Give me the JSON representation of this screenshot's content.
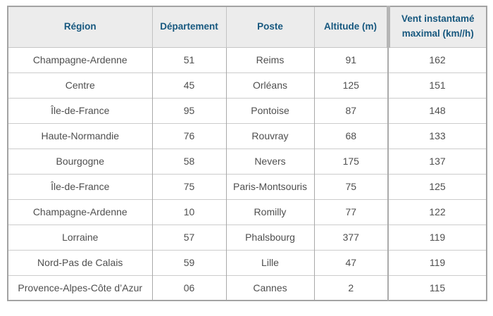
{
  "chart_data": {
    "type": "table",
    "title": "",
    "columns": [
      "Région",
      "Département",
      "Poste",
      "Altitude (m)",
      "Vent instantamé maximal (km//h)"
    ],
    "rows": [
      [
        "Champagne-Ardenne",
        "51",
        "Reims",
        "91",
        "162"
      ],
      [
        "Centre",
        "45",
        "Orléans",
        "125",
        "151"
      ],
      [
        "Île-de-France",
        "95",
        "Pontoise",
        "87",
        "148"
      ],
      [
        "Haute-Normandie",
        "76",
        "Rouvray",
        "68",
        "133"
      ],
      [
        "Bourgogne",
        "58",
        "Nevers",
        "175",
        "137"
      ],
      [
        "Île-de-France",
        "75",
        "Paris-Montsouris",
        "75",
        "125"
      ],
      [
        "Champagne-Ardenne",
        "10",
        "Romilly",
        "77",
        "122"
      ],
      [
        "Lorraine",
        "57",
        "Phalsbourg",
        "377",
        "119"
      ],
      [
        "Nord-Pas de Calais",
        "59",
        "Lille",
        "47",
        "119"
      ],
      [
        "Provence-Alpes-Côte d’Azur",
        "06",
        "Cannes",
        "2",
        "115"
      ]
    ],
    "colors": {
      "header_text": "#17587f",
      "header_bg": "#ececec",
      "body_text": "#4f4f4f",
      "outer_border": "#a3a3a3",
      "grid_line": "#cccccc"
    }
  }
}
